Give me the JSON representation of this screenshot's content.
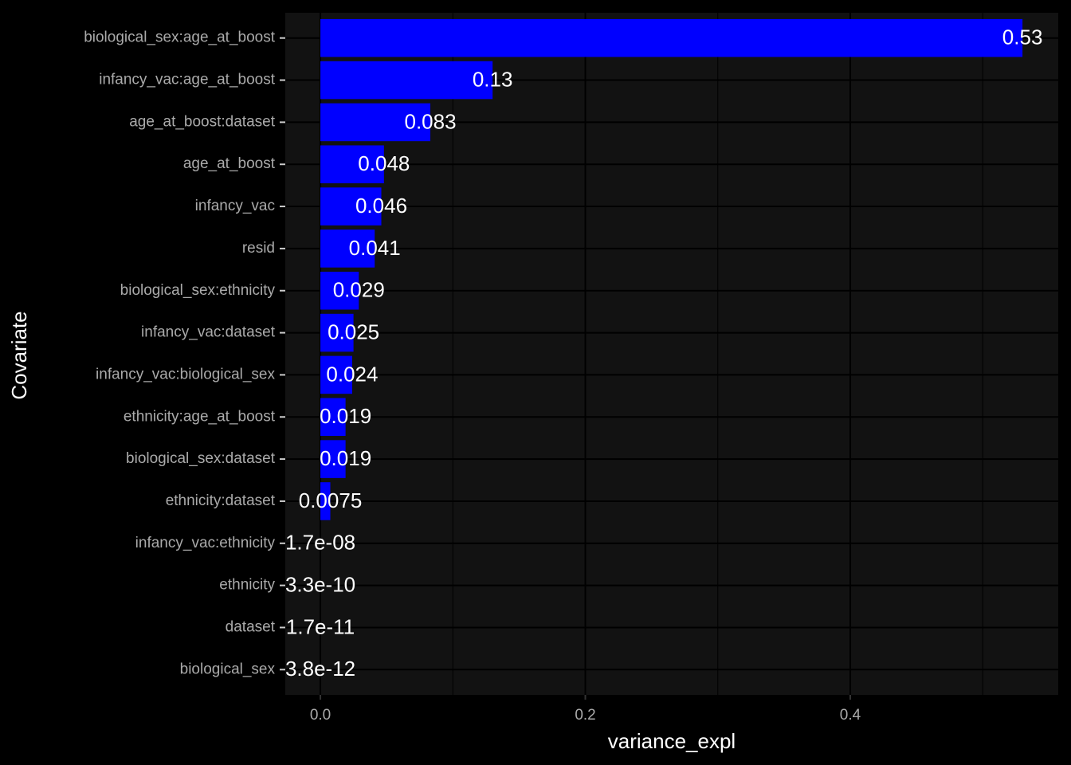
{
  "chart_data": {
    "type": "bar",
    "orientation": "horizontal",
    "x_label": "variance_expl",
    "y_label": "Covariate",
    "categories": [
      "biological_sex:age_at_boost",
      "infancy_vac:age_at_boost",
      "age_at_boost:dataset",
      "age_at_boost",
      "infancy_vac",
      "resid",
      "biological_sex:ethnicity",
      "infancy_vac:dataset",
      "infancy_vac:biological_sex",
      "ethnicity:age_at_boost",
      "biological_sex:dataset",
      "ethnicity:dataset",
      "infancy_vac:ethnicity",
      "ethnicity",
      "dataset",
      "biological_sex"
    ],
    "values": [
      0.53,
      0.13,
      0.083,
      0.048,
      0.046,
      0.041,
      0.029,
      0.025,
      0.024,
      0.019,
      0.019,
      0.0075,
      1.7e-08,
      3.3e-10,
      1.7e-11,
      3.8e-12
    ],
    "value_labels": [
      "0.53",
      "0.13",
      "0.083",
      "0.048",
      "0.046",
      "0.041",
      "0.029",
      "0.025",
      "0.024",
      "0.019",
      "0.019",
      "0.0075",
      "1.7e-08",
      "3.3e-10",
      "1.7e-11",
      "3.8e-12"
    ],
    "color": "#0000ff",
    "xlim": [
      -0.0265,
      0.557
    ],
    "xticks": [
      {
        "value": 0,
        "label": "0.0"
      },
      0.2,
      0.4
    ],
    "xminorticks": [
      0.1,
      0.3,
      0.5
    ],
    "grid": true
  }
}
